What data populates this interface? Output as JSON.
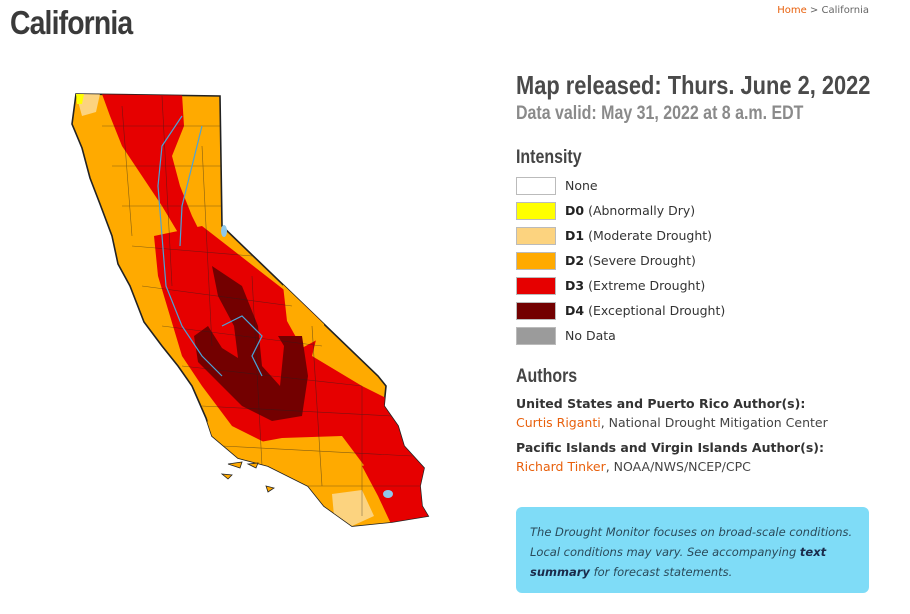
{
  "page": {
    "title": "California",
    "breadcrumb": {
      "home": "Home",
      "separator": ">",
      "current": "California"
    }
  },
  "info": {
    "released": "Map released: Thurs. June 2, 2022",
    "valid": "Data valid: May 31, 2022 at 8 a.m. EDT"
  },
  "legend": {
    "title": "Intensity",
    "items": [
      {
        "code": "",
        "label": "None",
        "color": "#ffffff"
      },
      {
        "code": "D0",
        "label": "(Abnormally Dry)",
        "color": "#ffff00"
      },
      {
        "code": "D1",
        "label": "(Moderate Drought)",
        "color": "#fcd37f"
      },
      {
        "code": "D2",
        "label": "(Severe Drought)",
        "color": "#ffaa00"
      },
      {
        "code": "D3",
        "label": "(Extreme Drought)",
        "color": "#e60000"
      },
      {
        "code": "D4",
        "label": "(Exceptional Drought)",
        "color": "#730000"
      },
      {
        "code": "",
        "label": "No Data",
        "color": "#9b9b9b"
      }
    ]
  },
  "authors": {
    "title": "Authors",
    "us_heading": "United States and Puerto Rico Author(s):",
    "us_name": "Curtis Riganti",
    "us_org": ", National Drought Mitigation Center",
    "pacific_heading": "Pacific Islands and Virgin Islands Author(s):",
    "pacific_name": "Richard Tinker",
    "pacific_org": ", NOAA/NWS/NCEP/CPC"
  },
  "note": {
    "text_1": "The Drought Monitor focuses on broad-scale conditions. Local conditions may vary. See accompanying ",
    "link": "text summary",
    "text_2": " for forecast statements."
  }
}
